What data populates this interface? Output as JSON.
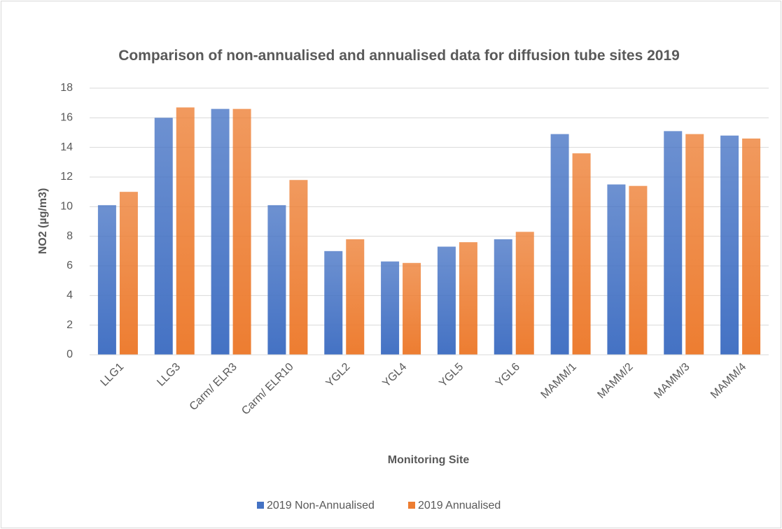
{
  "chart_data": {
    "type": "bar",
    "title": "Comparison of non-annualised and annualised data for diffusion tube sites 2019",
    "x_label": "Monitoring Site",
    "y_label": "NO2 (µg/m3)",
    "categories": [
      "LLG1",
      "LLG3",
      "Carm/ ELR3",
      "Carm/ ELR10",
      "YGL2",
      "YGL4",
      "YGL5",
      "YGL6",
      "MAMM/1",
      "MAMM/2",
      "MAMM/3",
      "MAMM/4"
    ],
    "series": [
      {
        "name": "2019 Non-Annualised",
        "color": "#4472c4",
        "values": [
          10.1,
          16.0,
          16.6,
          10.1,
          7.0,
          6.3,
          7.3,
          7.8,
          14.9,
          11.5,
          15.1,
          14.8
        ]
      },
      {
        "name": "2019 Annualised",
        "color": "#ed7d31",
        "values": [
          11.0,
          16.7,
          16.6,
          11.8,
          7.8,
          6.2,
          7.6,
          8.3,
          13.6,
          11.4,
          14.9,
          14.6
        ]
      }
    ],
    "ylim": [
      0,
      18
    ],
    "yticks": [
      0,
      2,
      4,
      6,
      8,
      10,
      12,
      14,
      16,
      18
    ],
    "grid": true,
    "legend": "bottom"
  }
}
